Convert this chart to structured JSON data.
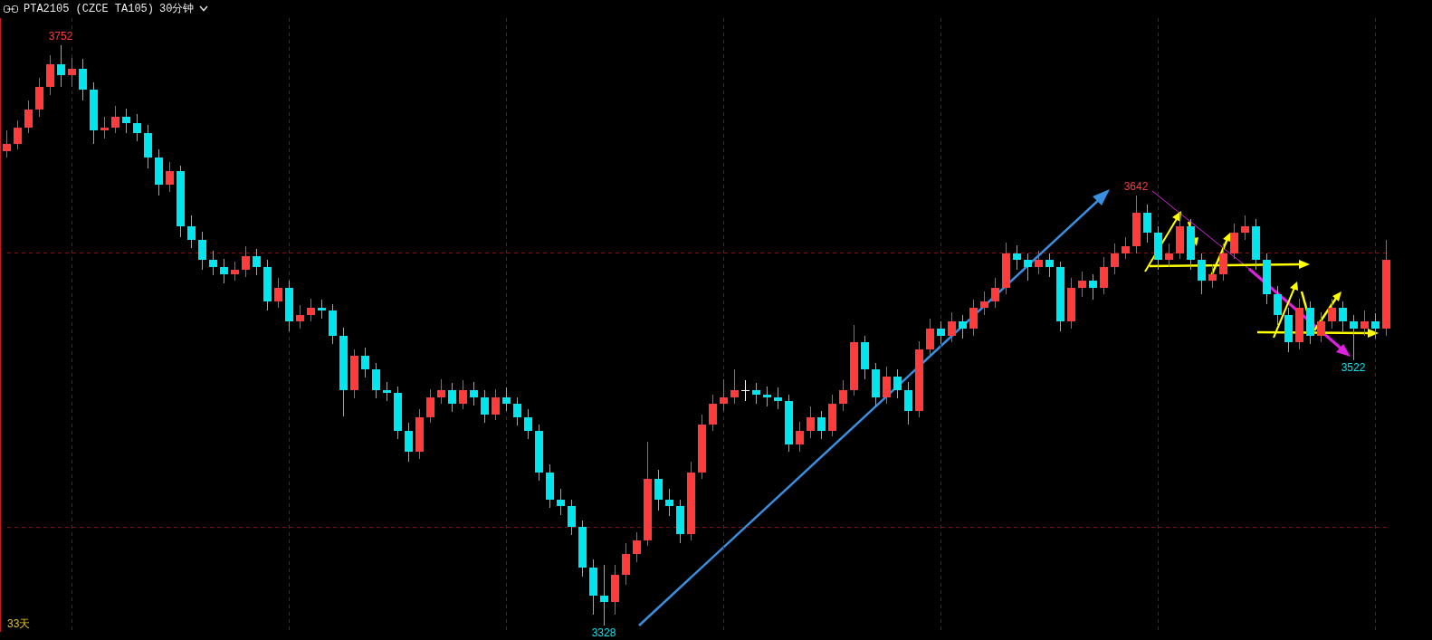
{
  "chart_data": {
    "type": "candlestick",
    "title": "PTA2105 (CZCE TA105)",
    "subtitle": "30分钟",
    "categories": [
      null,
      null,
      null,
      null,
      null,
      null,
      null,
      null,
      null,
      null,
      null,
      null,
      null,
      null,
      null,
      null,
      null,
      null,
      null,
      null,
      null,
      null,
      null,
      null,
      null,
      null,
      null,
      null,
      null,
      null,
      null,
      null,
      null,
      null,
      null,
      null,
      null,
      null,
      null,
      null,
      null,
      null,
      null,
      null,
      null,
      null,
      null,
      null,
      null,
      null,
      null,
      null,
      null,
      null,
      null,
      null,
      null,
      null,
      null,
      null,
      null,
      null,
      null,
      null,
      null,
      null,
      null,
      null,
      null,
      null,
      null,
      null,
      null,
      null,
      null,
      null,
      null,
      null,
      null,
      null,
      null,
      null,
      null,
      null,
      null,
      null,
      null,
      null,
      null,
      null,
      null,
      null,
      null,
      null,
      null,
      null,
      null,
      null,
      null,
      null,
      null,
      null,
      null,
      null,
      null,
      null,
      null,
      null,
      null,
      null,
      null,
      null,
      null,
      null,
      null,
      null,
      null,
      null,
      null,
      null,
      null,
      null,
      null,
      null,
      null,
      null,
      null,
      null
    ],
    "ohlc": [
      [
        3675,
        3690,
        3670,
        3680
      ],
      [
        3680,
        3697,
        3676,
        3692
      ],
      [
        3692,
        3712,
        3688,
        3705
      ],
      [
        3705,
        3728,
        3700,
        3722
      ],
      [
        3722,
        3745,
        3716,
        3738
      ],
      [
        3738,
        3752,
        3722,
        3730
      ],
      [
        3730,
        3743,
        3722,
        3735
      ],
      [
        3735,
        3742,
        3712,
        3720
      ],
      [
        3720,
        3725,
        3680,
        3690
      ],
      [
        3690,
        3700,
        3684,
        3692
      ],
      [
        3692,
        3708,
        3688,
        3700
      ],
      [
        3700,
        3706,
        3688,
        3695
      ],
      [
        3695,
        3702,
        3682,
        3688
      ],
      [
        3688,
        3694,
        3662,
        3670
      ],
      [
        3670,
        3676,
        3642,
        3650
      ],
      [
        3650,
        3667,
        3645,
        3660
      ],
      [
        3660,
        3664,
        3612,
        3620
      ],
      [
        3620,
        3628,
        3604,
        3610
      ],
      [
        3610,
        3616,
        3588,
        3595
      ],
      [
        3595,
        3602,
        3584,
        3590
      ],
      [
        3590,
        3596,
        3578,
        3585
      ],
      [
        3585,
        3594,
        3580,
        3588
      ],
      [
        3588,
        3605,
        3583,
        3598
      ],
      [
        3598,
        3603,
        3584,
        3590
      ],
      [
        3590,
        3595,
        3558,
        3565
      ],
      [
        3565,
        3582,
        3560,
        3575
      ],
      [
        3575,
        3580,
        3543,
        3550
      ],
      [
        3550,
        3562,
        3545,
        3555
      ],
      [
        3555,
        3567,
        3550,
        3560
      ],
      [
        3560,
        3566,
        3552,
        3558
      ],
      [
        3558,
        3563,
        3534,
        3540
      ],
      [
        3540,
        3546,
        3481,
        3500
      ],
      [
        3500,
        3530,
        3494,
        3525
      ],
      [
        3525,
        3531,
        3509,
        3515
      ],
      [
        3515,
        3520,
        3494,
        3500
      ],
      [
        3500,
        3506,
        3492,
        3498
      ],
      [
        3498,
        3503,
        3464,
        3470
      ],
      [
        3470,
        3476,
        3448,
        3455
      ],
      [
        3455,
        3486,
        3450,
        3480
      ],
      [
        3480,
        3501,
        3476,
        3495
      ],
      [
        3495,
        3508,
        3490,
        3500
      ],
      [
        3500,
        3505,
        3484,
        3490
      ],
      [
        3490,
        3507,
        3486,
        3500
      ],
      [
        3500,
        3506,
        3489,
        3495
      ],
      [
        3495,
        3500,
        3476,
        3482
      ],
      [
        3482,
        3501,
        3478,
        3495
      ],
      [
        3495,
        3502,
        3485,
        3490
      ],
      [
        3490,
        3495,
        3474,
        3480
      ],
      [
        3480,
        3486,
        3464,
        3470
      ],
      [
        3470,
        3475,
        3434,
        3440
      ],
      [
        3440,
        3446,
        3414,
        3420
      ],
      [
        3420,
        3428,
        3409,
        3415
      ],
      [
        3415,
        3420,
        3394,
        3400
      ],
      [
        3400,
        3405,
        3364,
        3370
      ],
      [
        3370,
        3376,
        3336,
        3350
      ],
      [
        3350,
        3372,
        3328,
        3345
      ],
      [
        3345,
        3372,
        3336,
        3365
      ],
      [
        3365,
        3388,
        3358,
        3380
      ],
      [
        3380,
        3396,
        3374,
        3390
      ],
      [
        3390,
        3462,
        3386,
        3435
      ],
      [
        3435,
        3442,
        3412,
        3420
      ],
      [
        3420,
        3428,
        3408,
        3415
      ],
      [
        3415,
        3420,
        3388,
        3395
      ],
      [
        3395,
        3448,
        3390,
        3440
      ],
      [
        3440,
        3482,
        3435,
        3475
      ],
      [
        3475,
        3497,
        3470,
        3490
      ],
      [
        3490,
        3508,
        3485,
        3495
      ],
      [
        3495,
        3515,
        3490,
        3500
      ],
      [
        3500,
        3507,
        3492,
        3500
      ],
      [
        3500,
        3505,
        3490,
        3497
      ],
      [
        3497,
        3503,
        3488,
        3495
      ],
      [
        3495,
        3502,
        3486,
        3492
      ],
      [
        3492,
        3497,
        3455,
        3460
      ],
      [
        3460,
        3477,
        3455,
        3470
      ],
      [
        3470,
        3488,
        3465,
        3480
      ],
      [
        3480,
        3485,
        3464,
        3470
      ],
      [
        3470,
        3497,
        3466,
        3490
      ],
      [
        3490,
        3507,
        3485,
        3500
      ],
      [
        3500,
        3548,
        3496,
        3535
      ],
      [
        3535,
        3540,
        3508,
        3515
      ],
      [
        3515,
        3520,
        3488,
        3495
      ],
      [
        3495,
        3517,
        3490,
        3510
      ],
      [
        3510,
        3515,
        3494,
        3500
      ],
      [
        3500,
        3506,
        3475,
        3485
      ],
      [
        3485,
        3536,
        3480,
        3530
      ],
      [
        3530,
        3552,
        3525,
        3545
      ],
      [
        3545,
        3550,
        3534,
        3540
      ],
      [
        3540,
        3557,
        3535,
        3550
      ],
      [
        3550,
        3555,
        3538,
        3545
      ],
      [
        3545,
        3566,
        3540,
        3560
      ],
      [
        3560,
        3572,
        3555,
        3565
      ],
      [
        3565,
        3582,
        3560,
        3575
      ],
      [
        3575,
        3608,
        3570,
        3600
      ],
      [
        3600,
        3606,
        3588,
        3595
      ],
      [
        3595,
        3600,
        3580,
        3590
      ],
      [
        3590,
        3602,
        3585,
        3595
      ],
      [
        3595,
        3600,
        3583,
        3590
      ],
      [
        3590,
        3594,
        3543,
        3550
      ],
      [
        3550,
        3582,
        3545,
        3575
      ],
      [
        3575,
        3587,
        3568,
        3580
      ],
      [
        3580,
        3585,
        3566,
        3575
      ],
      [
        3575,
        3597,
        3570,
        3590
      ],
      [
        3590,
        3607,
        3585,
        3600
      ],
      [
        3600,
        3612,
        3596,
        3605
      ],
      [
        3605,
        3642,
        3600,
        3630
      ],
      [
        3630,
        3636,
        3608,
        3615
      ],
      [
        3615,
        3620,
        3588,
        3595
      ],
      [
        3595,
        3607,
        3590,
        3600
      ],
      [
        3600,
        3630,
        3596,
        3620
      ],
      [
        3620,
        3625,
        3588,
        3595
      ],
      [
        3595,
        3600,
        3570,
        3580
      ],
      [
        3580,
        3592,
        3575,
        3585
      ],
      [
        3585,
        3607,
        3580,
        3600
      ],
      [
        3600,
        3622,
        3596,
        3615
      ],
      [
        3615,
        3628,
        3610,
        3620
      ],
      [
        3620,
        3625,
        3588,
        3595
      ],
      [
        3595,
        3600,
        3563,
        3570
      ],
      [
        3570,
        3576,
        3548,
        3555
      ],
      [
        3555,
        3560,
        3528,
        3535
      ],
      [
        3535,
        3567,
        3530,
        3560
      ],
      [
        3560,
        3565,
        3534,
        3540
      ],
      [
        3540,
        3557,
        3535,
        3550
      ],
      [
        3550,
        3567,
        3545,
        3560
      ],
      [
        3560,
        3565,
        3543,
        3550
      ],
      [
        3550,
        3555,
        3522,
        3545
      ],
      [
        3545,
        3558,
        3540,
        3550
      ],
      [
        3550,
        3556,
        3538,
        3545
      ],
      [
        3545,
        3610,
        3540,
        3595
      ]
    ],
    "colors": [
      "#ff3b3b",
      "#ff3b3b",
      "#ff3b3b",
      "#ff3b3b",
      "#ff3b3b",
      "#00e5ee",
      "#ff3b3b",
      "#00e5ee",
      "#00e5ee",
      "#ff3b3b",
      "#ff3b3b",
      "#00e5ee",
      "#00e5ee",
      "#00e5ee",
      "#00e5ee",
      "#ff3b3b",
      "#00e5ee",
      "#00e5ee",
      "#00e5ee",
      "#00e5ee",
      "#00e5ee",
      "#ff3b3b",
      "#ff3b3b",
      "#00e5ee",
      "#00e5ee",
      "#ff3b3b",
      "#00e5ee",
      "#ff3b3b",
      "#ff3b3b",
      "#00e5ee",
      "#00e5ee",
      "#00e5ee",
      "#ff3b3b",
      "#00e5ee",
      "#00e5ee",
      "#00e5ee",
      "#00e5ee",
      "#00e5ee",
      "#ff3b3b",
      "#ff3b3b",
      "#ff3b3b",
      "#00e5ee",
      "#ff3b3b",
      "#00e5ee",
      "#00e5ee",
      "#ff3b3b",
      "#00e5ee",
      "#00e5ee",
      "#00e5ee",
      "#00e5ee",
      "#00e5ee",
      "#00e5ee",
      "#00e5ee",
      "#00e5ee",
      "#00e5ee",
      "#00e5ee",
      "#ff3b3b",
      "#ff3b3b",
      "#ff3b3b",
      "#ff3b3b",
      "#00e5ee",
      "#00e5ee",
      "#00e5ee",
      "#ff3b3b",
      "#ff3b3b",
      "#ff3b3b",
      "#ff3b3b",
      "#ff3b3b",
      "#ffffff",
      "#00e5ee",
      "#00e5ee",
      "#00e5ee",
      "#00e5ee",
      "#ff3b3b",
      "#ff3b3b",
      "#00e5ee",
      "#ff3b3b",
      "#ff3b3b",
      "#ff3b3b",
      "#00e5ee",
      "#00e5ee",
      "#ff3b3b",
      "#00e5ee",
      "#00e5ee",
      "#ff3b3b",
      "#ff3b3b",
      "#00e5ee",
      "#ff3b3b",
      "#00e5ee",
      "#ff3b3b",
      "#ff3b3b",
      "#ff3b3b",
      "#ff3b3b",
      "#00e5ee",
      "#00e5ee",
      "#ff3b3b",
      "#00e5ee",
      "#00e5ee",
      "#ff3b3b",
      "#ff3b3b",
      "#00e5ee",
      "#ff3b3b",
      "#ff3b3b",
      "#ff3b3b",
      "#ff3b3b",
      "#00e5ee",
      "#00e5ee",
      "#ff3b3b",
      "#ff3b3b",
      "#00e5ee",
      "#00e5ee",
      "#ff3b3b",
      "#ff3b3b",
      "#ff3b3b",
      "#ff3b3b",
      "#00e5ee",
      "#00e5ee",
      "#00e5ee",
      "#00e5ee",
      "#ff3b3b",
      "#00e5ee",
      "#ff3b3b",
      "#ff3b3b",
      "#00e5ee",
      "#00e5ee",
      "#ff3b3b",
      "#00e5ee",
      "#ff3b3b"
    ],
    "ylim": [
      3324,
      3772
    ],
    "yticks": [
      {
        "value": 3400,
        "label": null
      },
      {
        "value": 3600,
        "label": null
      }
    ],
    "grid": true,
    "annotations": [
      {
        "text": "3752",
        "y": 3752
      },
      {
        "text": "3642",
        "y": 3642
      },
      {
        "text": "3328",
        "y": 3328
      },
      {
        "text": "3522",
        "y": 3522
      },
      "33天"
    ]
  }
}
